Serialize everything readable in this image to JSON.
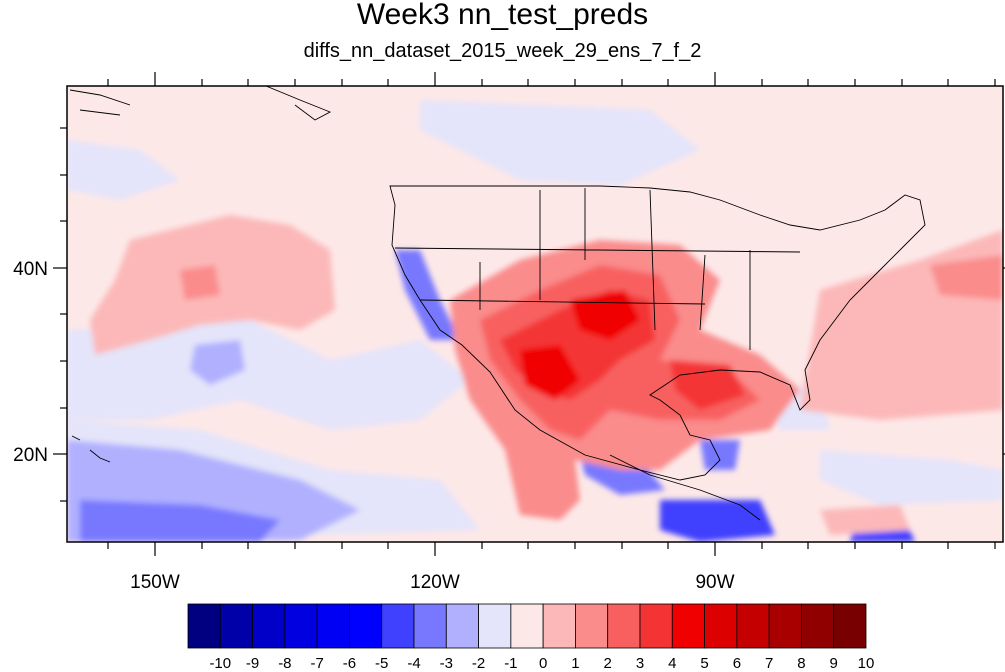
{
  "title": "Week3 nn_test_preds",
  "subtitle": "diffs_nn_dataset_2015_week_29_ens_7_f_2",
  "lon_ticks": [
    "150W",
    "120W",
    "90W"
  ],
  "lat_ticks": [
    "40N",
    "20N"
  ],
  "colorbar": {
    "labels": [
      "-10",
      "-9",
      "-8",
      "-7",
      "-6",
      "-5",
      "-4",
      "-3",
      "-2",
      "-1",
      "0",
      "1",
      "2",
      "3",
      "4",
      "5",
      "6",
      "7",
      "8",
      "9",
      "10"
    ],
    "colors": [
      "#000080",
      "#0000a8",
      "#0000c8",
      "#0000e0",
      "#0000f4",
      "#0000ff",
      "#4040ff",
      "#7878ff",
      "#b0b0ff",
      "#e4e4fa",
      "#fde8e8",
      "#fcb8b8",
      "#fa8c8c",
      "#f86060",
      "#f43434",
      "#f00000",
      "#dc0000",
      "#c40000",
      "#a80000",
      "#900000",
      "#780000"
    ]
  },
  "colors": {
    "background_positive": "#fde8e8",
    "background_negative": "#e4e4fa"
  }
}
